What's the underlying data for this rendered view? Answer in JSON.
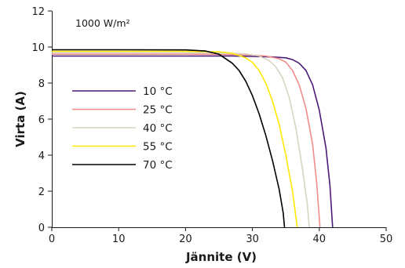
{
  "chart_data": {
    "type": "line",
    "annotation": "1000 W/m²",
    "xlabel": "Jännite (V)",
    "ylabel": "Virta (A)",
    "xlim": [
      0,
      50
    ],
    "ylim": [
      0,
      12
    ],
    "xticks": [
      "0",
      "10",
      "20",
      "30",
      "40",
      "50"
    ],
    "yticks": [
      "0",
      "2",
      "4",
      "6",
      "8",
      "10",
      "12"
    ],
    "grid": false,
    "legend_position": "left",
    "series": [
      {
        "name": "10 °C",
        "color": "#4b1a78",
        "points": [
          [
            0,
            9.5
          ],
          [
            10,
            9.5
          ],
          [
            20,
            9.5
          ],
          [
            27,
            9.5
          ],
          [
            30,
            9.48
          ],
          [
            33,
            9.45
          ],
          [
            35,
            9.4
          ],
          [
            36,
            9.3
          ],
          [
            37,
            9.1
          ],
          [
            38,
            8.7
          ],
          [
            39,
            7.9
          ],
          [
            40,
            6.5
          ],
          [
            41,
            4.4
          ],
          [
            41.6,
            2.3
          ],
          [
            42,
            0
          ]
        ]
      },
      {
        "name": "25 °C",
        "color": "#f08c8c",
        "points": [
          [
            0,
            9.6
          ],
          [
            10,
            9.6
          ],
          [
            20,
            9.6
          ],
          [
            27,
            9.58
          ],
          [
            30,
            9.55
          ],
          [
            32,
            9.5
          ],
          [
            34,
            9.35
          ],
          [
            35,
            9.15
          ],
          [
            36,
            8.7
          ],
          [
            37,
            7.9
          ],
          [
            38,
            6.6
          ],
          [
            39,
            4.6
          ],
          [
            39.6,
            2.5
          ],
          [
            40.1,
            0
          ]
        ]
      },
      {
        "name": "40 °C",
        "color": "#d8d4c0",
        "points": [
          [
            0,
            9.68
          ],
          [
            10,
            9.68
          ],
          [
            20,
            9.68
          ],
          [
            26,
            9.66
          ],
          [
            29,
            9.62
          ],
          [
            31,
            9.5
          ],
          [
            32.5,
            9.25
          ],
          [
            33.5,
            8.9
          ],
          [
            34.5,
            8.3
          ],
          [
            35.5,
            7.2
          ],
          [
            36.5,
            5.5
          ],
          [
            37.5,
            3.2
          ],
          [
            38.2,
            1.3
          ],
          [
            38.5,
            0
          ]
        ]
      },
      {
        "name": "55 °C",
        "color": "#ffe800",
        "points": [
          [
            0,
            9.76
          ],
          [
            10,
            9.76
          ],
          [
            20,
            9.76
          ],
          [
            25,
            9.73
          ],
          [
            27,
            9.65
          ],
          [
            29,
            9.4
          ],
          [
            30,
            9.15
          ],
          [
            31,
            8.7
          ],
          [
            32,
            8.0
          ],
          [
            33,
            7.0
          ],
          [
            34,
            5.7
          ],
          [
            35,
            4.0
          ],
          [
            36,
            2.0
          ],
          [
            36.7,
            0
          ]
        ]
      },
      {
        "name": "70 °C",
        "color": "#000000",
        "points": [
          [
            0,
            9.85
          ],
          [
            10,
            9.85
          ],
          [
            20,
            9.84
          ],
          [
            23,
            9.78
          ],
          [
            25,
            9.6
          ],
          [
            27,
            9.1
          ],
          [
            28,
            8.7
          ],
          [
            29,
            8.1
          ],
          [
            30,
            7.3
          ],
          [
            31,
            6.3
          ],
          [
            32,
            5.1
          ],
          [
            33,
            3.7
          ],
          [
            34,
            2.1
          ],
          [
            34.6,
            0.8
          ],
          [
            34.8,
            0
          ]
        ]
      }
    ]
  }
}
